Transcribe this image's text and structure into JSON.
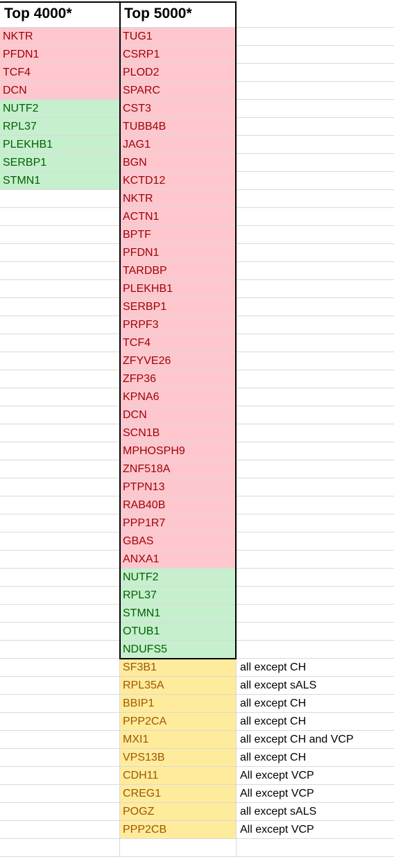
{
  "headers": [
    "Top 4000*",
    "Top 5000*",
    ""
  ],
  "col_top4000": [
    {
      "text": "NKTR",
      "status": "red"
    },
    {
      "text": "PFDN1",
      "status": "red"
    },
    {
      "text": "TCF4",
      "status": "red"
    },
    {
      "text": "DCN",
      "status": "red"
    },
    {
      "text": "NUTF2",
      "status": "green"
    },
    {
      "text": "RPL37",
      "status": "green"
    },
    {
      "text": "PLEKHB1",
      "status": "green"
    },
    {
      "text": "SERBP1",
      "status": "green"
    },
    {
      "text": "STMN1",
      "status": "green"
    }
  ],
  "col_top5000": [
    {
      "text": "TUG1",
      "status": "red"
    },
    {
      "text": "CSRP1",
      "status": "red"
    },
    {
      "text": "PLOD2",
      "status": "red"
    },
    {
      "text": "SPARC",
      "status": "red"
    },
    {
      "text": "CST3",
      "status": "red"
    },
    {
      "text": "TUBB4B",
      "status": "red"
    },
    {
      "text": "JAG1",
      "status": "red"
    },
    {
      "text": "BGN",
      "status": "red"
    },
    {
      "text": "KCTD12",
      "status": "red"
    },
    {
      "text": "NKTR",
      "status": "red"
    },
    {
      "text": "ACTN1",
      "status": "red"
    },
    {
      "text": "BPTF",
      "status": "red"
    },
    {
      "text": "PFDN1",
      "status": "red"
    },
    {
      "text": "TARDBP",
      "status": "red"
    },
    {
      "text": "PLEKHB1",
      "status": "red"
    },
    {
      "text": "SERBP1",
      "status": "red"
    },
    {
      "text": "PRPF3",
      "status": "red"
    },
    {
      "text": "TCF4",
      "status": "red"
    },
    {
      "text": "ZFYVE26",
      "status": "red"
    },
    {
      "text": "ZFP36",
      "status": "red"
    },
    {
      "text": "KPNA6",
      "status": "red"
    },
    {
      "text": "DCN",
      "status": "red"
    },
    {
      "text": "SCN1B",
      "status": "red"
    },
    {
      "text": "MPHOSPH9",
      "status": "red"
    },
    {
      "text": "ZNF518A",
      "status": "red"
    },
    {
      "text": "PTPN13",
      "status": "red"
    },
    {
      "text": "RAB40B",
      "status": "red"
    },
    {
      "text": "PPP1R7",
      "status": "red"
    },
    {
      "text": "GBAS",
      "status": "red"
    },
    {
      "text": "ANXA1",
      "status": "red"
    },
    {
      "text": "NUTF2",
      "status": "green"
    },
    {
      "text": "RPL37",
      "status": "green"
    },
    {
      "text": "STMN1",
      "status": "green"
    },
    {
      "text": "OTUB1",
      "status": "green"
    },
    {
      "text": "NDUFS5",
      "status": "green"
    },
    {
      "text": "SF3B1",
      "status": "yellow"
    },
    {
      "text": "RPL35A",
      "status": "yellow"
    },
    {
      "text": "BBIP1",
      "status": "yellow"
    },
    {
      "text": "PPP2CA",
      "status": "yellow"
    },
    {
      "text": "MXI1",
      "status": "yellow"
    },
    {
      "text": "VPS13B",
      "status": "yellow"
    },
    {
      "text": "CDH11",
      "status": "yellow"
    },
    {
      "text": "CREG1",
      "status": "yellow"
    },
    {
      "text": "POGZ",
      "status": "yellow"
    },
    {
      "text": "PPP2CB",
      "status": "yellow"
    }
  ],
  "notes": [
    "all except CH",
    "all except sALS",
    "all except CH",
    "all except CH",
    "all except CH and VCP",
    "all except CH",
    "All except VCP",
    "All except VCP",
    "all except sALS",
    "All except VCP"
  ],
  "colors": {
    "red_fill": "#fec7ce",
    "red_text": "#9d0006",
    "green_fill": "#c6efce",
    "green_text": "#006100",
    "yellow_fill": "#ffeb9c",
    "yellow_text": "#9c5700",
    "gridline": "#d9d9d9"
  }
}
